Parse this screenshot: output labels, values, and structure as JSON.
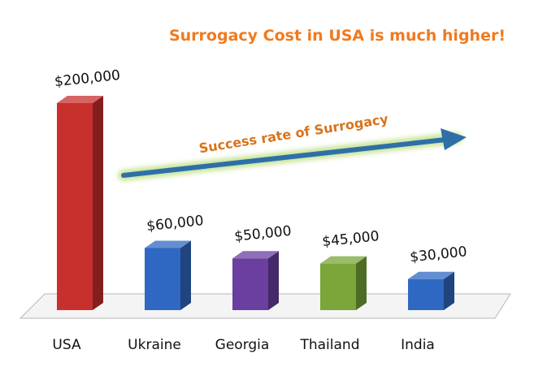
{
  "chart_data": {
    "type": "bar",
    "title": "Surrogacy Cost in USA is much higher!",
    "categories": [
      "USA",
      "Ukraine",
      "Georgia",
      "Thailand",
      "India"
    ],
    "values": [
      200000,
      60000,
      50000,
      45000,
      30000
    ],
    "data_labels": [
      "$200,000",
      "$60,000",
      "$50,000",
      "$45,000",
      "$30,000"
    ],
    "bar_colors": [
      "#c8302e",
      "#2f68c2",
      "#6a3fa0",
      "#7aa63a",
      "#2f68c2"
    ],
    "annotation": "Success rate of Surrogacy",
    "xlabel": "",
    "ylabel": "",
    "ylim": [
      0,
      200000
    ],
    "grid": false,
    "legend": "none",
    "style": "3d"
  },
  "colors": {
    "title": "#f07a1e",
    "annotation_text": "#d9731a",
    "arrow": "#2f6fa8",
    "arrow_glow": "#c9e59a",
    "floor_fill": "#f4f4f4",
    "floor_stroke": "#b8b8b8",
    "text": "#111111"
  }
}
